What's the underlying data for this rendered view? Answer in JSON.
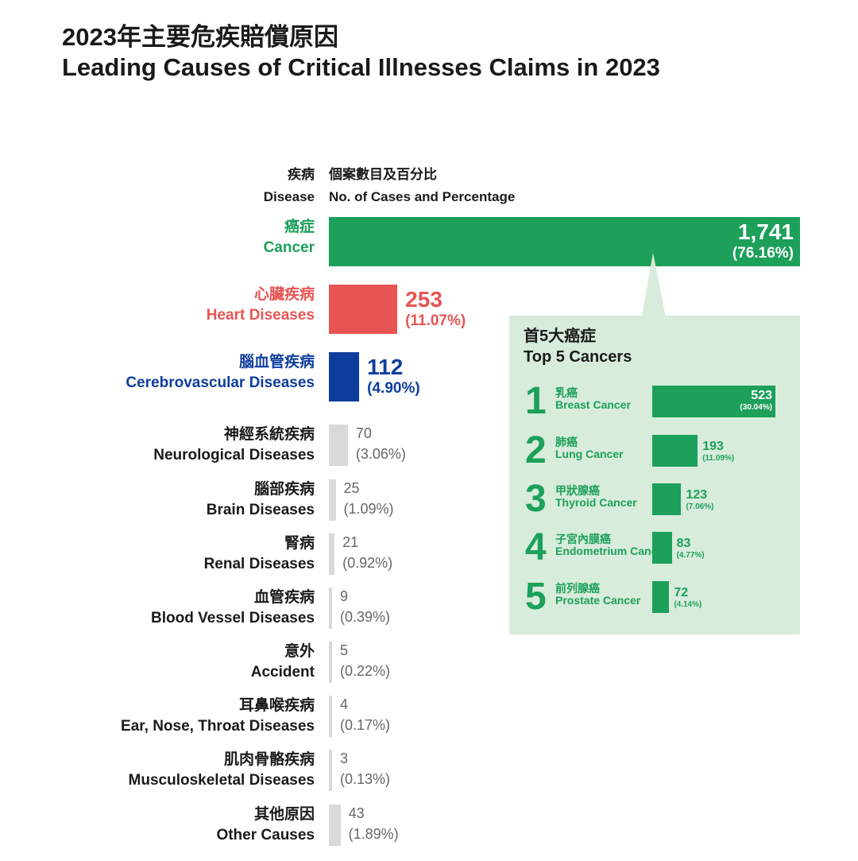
{
  "title_zh": "2023年主要危疾賠償原因",
  "title_en": "Leading Causes of Critical Illnesses Claims in 2023",
  "header": {
    "disease_zh": "疾病",
    "disease_en": "Disease",
    "cases_zh": "個案數目及百分比",
    "cases_en": "No. of Cases and Percentage"
  },
  "colors": {
    "cancer": "#1ca05a",
    "heart": "#e85454",
    "cerebro": "#0e3e9c",
    "other": "#d9d9d9",
    "inset_bg": "#d7ecdb"
  },
  "chart_data": [
    {
      "type": "bar",
      "orientation": "horizontal",
      "categories": [
        "癌症 Cancer",
        "心臟疾病 Heart Diseases",
        "腦血管疾病 Cerebrovascular Diseases",
        "神經系統疾病 Neurological Diseases",
        "腦部疾病 Brain Diseases",
        "腎病 Renal Diseases",
        "血管疾病 Blood Vessel Diseases",
        "意外 Accident",
        "耳鼻喉疾病 Ear, Nose, Throat Diseases",
        "肌肉骨骼疾病 Musculoskeletal Diseases",
        "其他原因 Other Causes"
      ],
      "items": [
        {
          "zh": "癌症",
          "en": "Cancer",
          "value": 1741,
          "label": "1,741",
          "pct": "(76.16%)",
          "color": "#1ca05a",
          "emph": true
        },
        {
          "zh": "心臟疾病",
          "en": "Heart Diseases",
          "value": 253,
          "label": "253",
          "pct": "(11.07%)",
          "color": "#e85454",
          "emph": true
        },
        {
          "zh": "腦血管疾病",
          "en": "Cerebrovascular Diseases",
          "value": 112,
          "label": "112",
          "pct": "(4.90%)",
          "color": "#0e3e9c",
          "emph": true
        },
        {
          "zh": "神經系統疾病",
          "en": "Neurological Diseases",
          "value": 70,
          "label": "70",
          "pct": "(3.06%)",
          "color": "#d9d9d9",
          "emph": false
        },
        {
          "zh": "腦部疾病",
          "en": "Brain Diseases",
          "value": 25,
          "label": "25",
          "pct": "(1.09%)",
          "color": "#d9d9d9",
          "emph": false
        },
        {
          "zh": "腎病",
          "en": "Renal Diseases",
          "value": 21,
          "label": "21",
          "pct": "(0.92%)",
          "color": "#d9d9d9",
          "emph": false
        },
        {
          "zh": "血管疾病",
          "en": "Blood Vessel Diseases",
          "value": 9,
          "label": "9",
          "pct": "(0.39%)",
          "color": "#d9d9d9",
          "emph": false
        },
        {
          "zh": "意外",
          "en": "Accident",
          "value": 5,
          "label": "5",
          "pct": "(0.22%)",
          "color": "#d9d9d9",
          "emph": false
        },
        {
          "zh": "耳鼻喉疾病",
          "en": "Ear, Nose, Throat Diseases",
          "value": 4,
          "label": "4",
          "pct": "(0.17%)",
          "color": "#d9d9d9",
          "emph": false
        },
        {
          "zh": "肌肉骨骼疾病",
          "en": "Musculoskeletal Diseases",
          "value": 3,
          "label": "3",
          "pct": "(0.13%)",
          "color": "#d9d9d9",
          "emph": false
        },
        {
          "zh": "其他原因",
          "en": "Other Causes",
          "value": 43,
          "label": "43",
          "pct": "(1.89%)",
          "color": "#d9d9d9",
          "emph": false
        }
      ]
    },
    {
      "type": "bar",
      "orientation": "horizontal",
      "title_zh": "首5大癌症",
      "title_en": "Top 5 Cancers",
      "items": [
        {
          "rank": "1",
          "zh": "乳癌",
          "en": "Breast Cancer",
          "value": 523,
          "label": "523",
          "pct": "(30.04%)"
        },
        {
          "rank": "2",
          "zh": "肺癌",
          "en": "Lung Cancer",
          "value": 193,
          "label": "193",
          "pct": "(11.09%)"
        },
        {
          "rank": "3",
          "zh": "甲狀腺癌",
          "en": "Thyroid Cancer",
          "value": 123,
          "label": "123",
          "pct": "(7.06%)"
        },
        {
          "rank": "4",
          "zh": "子宮內膜癌",
          "en": "Endometrium Cancer",
          "value": 83,
          "label": "83",
          "pct": "(4.77%)"
        },
        {
          "rank": "5",
          "zh": "前列腺癌",
          "en": "Prostate Cancer",
          "value": 72,
          "label": "72",
          "pct": "(4.14%)"
        }
      ]
    }
  ]
}
